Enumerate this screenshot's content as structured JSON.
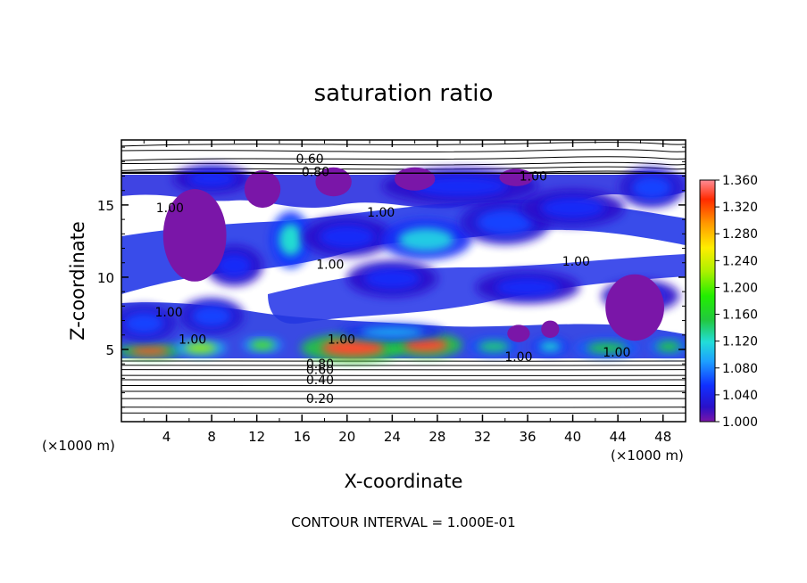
{
  "chart_data": {
    "type": "heatmap",
    "title": "saturation ratio",
    "xlabel": "X-coordinate",
    "ylabel": "Z-coordinate",
    "x_unit": "(×1000 m)",
    "z_unit": "(×1000 m)",
    "xlim": [
      0,
      50
    ],
    "ylim": [
      0,
      19.5
    ],
    "x_ticks": [
      4,
      8,
      12,
      16,
      20,
      24,
      28,
      32,
      36,
      40,
      44,
      48
    ],
    "y_ticks": [
      5,
      10,
      15
    ],
    "colorbar": {
      "min": 1.0,
      "max": 1.36,
      "ticks": [
        "1.360",
        "1.320",
        "1.280",
        "1.240",
        "1.200",
        "1.160",
        "1.120",
        "1.080",
        "1.040",
        "1.000"
      ]
    },
    "contour_interval_text": "CONTOUR INTERVAL = 1.000E-01",
    "contour_labels": [
      {
        "text": "0.60",
        "x": 16.7,
        "z": 18.2
      },
      {
        "text": "0.80",
        "x": 17.2,
        "z": 17.3
      },
      {
        "text": "1.00",
        "x": 36.5,
        "z": 17.0
      },
      {
        "text": "1.00",
        "x": 4.3,
        "z": 14.8
      },
      {
        "text": "1.00",
        "x": 23.0,
        "z": 14.5
      },
      {
        "text": "1.00",
        "x": 18.5,
        "z": 10.9
      },
      {
        "text": "1.00",
        "x": 40.3,
        "z": 11.1
      },
      {
        "text": "1.00",
        "x": 4.2,
        "z": 7.6
      },
      {
        "text": "1.00",
        "x": 6.3,
        "z": 5.7
      },
      {
        "text": "1.00",
        "x": 19.5,
        "z": 5.7
      },
      {
        "text": "1.00",
        "x": 35.2,
        "z": 4.5
      },
      {
        "text": "1.00",
        "x": 43.9,
        "z": 4.8
      },
      {
        "text": "0.80",
        "x": 17.6,
        "z": 4.0
      },
      {
        "text": "0.60",
        "x": 17.6,
        "z": 3.6
      },
      {
        "text": "0.40",
        "x": 17.6,
        "z": 2.9
      },
      {
        "text": "0.20",
        "x": 17.6,
        "z": 1.6
      }
    ],
    "supersat_blobs": [
      {
        "x": 2.5,
        "z": 4.9,
        "rx": 2.5,
        "rz": 0.35,
        "v": 1.34
      },
      {
        "x": 7.0,
        "z": 5.1,
        "rx": 2.0,
        "rz": 0.4,
        "v": 1.22
      },
      {
        "x": 12.5,
        "z": 5.3,
        "rx": 1.5,
        "rz": 0.35,
        "v": 1.2
      },
      {
        "x": 20.5,
        "z": 5.1,
        "rx": 4.0,
        "rz": 0.7,
        "v": 1.34
      },
      {
        "x": 27.0,
        "z": 5.3,
        "rx": 2.8,
        "rz": 0.6,
        "v": 1.34
      },
      {
        "x": 33.0,
        "z": 5.2,
        "rx": 2.0,
        "rz": 0.45,
        "v": 1.14
      },
      {
        "x": 38.0,
        "z": 5.2,
        "rx": 1.4,
        "rz": 0.4,
        "v": 1.12
      },
      {
        "x": 43.0,
        "z": 5.1,
        "rx": 2.5,
        "rz": 0.45,
        "v": 1.15
      },
      {
        "x": 48.5,
        "z": 5.2,
        "rx": 1.5,
        "rz": 0.4,
        "v": 1.16
      },
      {
        "x": 24.0,
        "z": 6.2,
        "rx": 4.0,
        "rz": 0.4,
        "v": 1.1
      },
      {
        "x": 2.0,
        "z": 6.8,
        "rx": 2.5,
        "rz": 0.9,
        "v": 1.06
      },
      {
        "x": 8.0,
        "z": 7.3,
        "rx": 2.5,
        "rz": 0.9,
        "v": 1.06
      },
      {
        "x": 10.0,
        "z": 10.8,
        "rx": 2.2,
        "rz": 1.0,
        "v": 1.05
      },
      {
        "x": 15.0,
        "z": 12.6,
        "rx": 1.5,
        "rz": 1.4,
        "v": 1.12
      },
      {
        "x": 20.0,
        "z": 12.8,
        "rx": 3.5,
        "rz": 1.0,
        "v": 1.05
      },
      {
        "x": 27.0,
        "z": 12.6,
        "rx": 3.5,
        "rz": 1.0,
        "v": 1.11
      },
      {
        "x": 34.0,
        "z": 13.8,
        "rx": 3.5,
        "rz": 1.1,
        "v": 1.06
      },
      {
        "x": 40.0,
        "z": 14.8,
        "rx": 4.0,
        "rz": 0.9,
        "v": 1.05
      },
      {
        "x": 24.0,
        "z": 9.9,
        "rx": 3.5,
        "rz": 0.9,
        "v": 1.05
      },
      {
        "x": 36.0,
        "z": 9.3,
        "rx": 4.0,
        "rz": 0.8,
        "v": 1.05
      },
      {
        "x": 46.0,
        "z": 8.7,
        "rx": 3.0,
        "rz": 0.8,
        "v": 1.05
      },
      {
        "x": 30.0,
        "z": 16.3,
        "rx": 6.0,
        "rz": 0.9,
        "v": 1.05
      },
      {
        "x": 8.0,
        "z": 16.8,
        "rx": 3.0,
        "rz": 0.7,
        "v": 1.05
      },
      {
        "x": 47.0,
        "z": 16.2,
        "rx": 2.5,
        "rz": 1.0,
        "v": 1.06
      }
    ],
    "neutral_regions": [
      {
        "x": 6.5,
        "z": 12.9,
        "rx": 2.8,
        "rz": 3.2
      },
      {
        "x": 12.5,
        "z": 16.1,
        "rx": 1.6,
        "rz": 1.3
      },
      {
        "x": 18.8,
        "z": 16.6,
        "rx": 1.6,
        "rz": 1.0
      },
      {
        "x": 26.0,
        "z": 16.8,
        "rx": 1.8,
        "rz": 0.8
      },
      {
        "x": 35.0,
        "z": 16.9,
        "rx": 1.5,
        "rz": 0.6
      },
      {
        "x": 45.5,
        "z": 7.9,
        "rx": 2.6,
        "rz": 2.3
      },
      {
        "x": 35.2,
        "z": 6.1,
        "rx": 1.0,
        "rz": 0.6
      },
      {
        "x": 38.0,
        "z": 6.4,
        "rx": 0.8,
        "rz": 0.6
      }
    ]
  }
}
